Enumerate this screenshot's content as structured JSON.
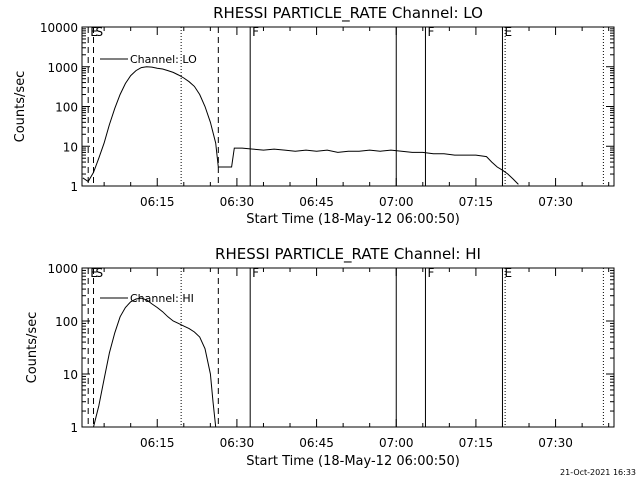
{
  "footer": {
    "timestamp": "21-Oct-2021 16:33"
  },
  "chart_data": [
    {
      "type": "line",
      "title": "RHESSI PARTICLE_RATE Channel: LO",
      "xlabel": "Start Time (18-May-12 06:00:50)",
      "ylabel": "Counts/sec",
      "yscale": "log",
      "xlim": [
        "06:00:50",
        "07:41:00"
      ],
      "ylim": [
        1,
        10000
      ],
      "yticks": [
        {
          "v": 1,
          "label": "1"
        },
        {
          "v": 10,
          "label": "10"
        },
        {
          "v": 100,
          "label": "100"
        },
        {
          "v": 1000,
          "label": "1000"
        },
        {
          "v": 10000,
          "label": "10000"
        }
      ],
      "xticks": [
        "06:15",
        "06:30",
        "06:45",
        "07:00",
        "07:15",
        "07:30"
      ],
      "grid": false,
      "legend": "top-left",
      "series": [
        {
          "name": "Channel: LO",
          "points": [
            [
              "06:01",
              1.6
            ],
            [
              "06:02",
              1.3
            ],
            [
              "06:03",
              2.2
            ],
            [
              "06:04",
              5
            ],
            [
              "06:05",
              12
            ],
            [
              "06:06",
              35
            ],
            [
              "06:07",
              90
            ],
            [
              "06:08",
              200
            ],
            [
              "06:09",
              380
            ],
            [
              "06:10",
              600
            ],
            [
              "06:11",
              800
            ],
            [
              "06:12",
              950
            ],
            [
              "06:13",
              1000
            ],
            [
              "06:14",
              980
            ],
            [
              "06:15",
              920
            ],
            [
              "06:16",
              880
            ],
            [
              "06:17",
              800
            ],
            [
              "06:18",
              720
            ],
            [
              "06:19",
              620
            ],
            [
              "06:20",
              520
            ],
            [
              "06:21",
              420
            ],
            [
              "06:22",
              320
            ],
            [
              "06:23",
              200
            ],
            [
              "06:24",
              100
            ],
            [
              "06:25",
              40
            ],
            [
              "06:26",
              12
            ],
            [
              "06:26.5",
              3
            ],
            [
              "06:28",
              3
            ],
            [
              "06:29",
              3
            ],
            [
              "06:29.5",
              9
            ],
            [
              "06:31",
              9
            ],
            [
              "06:33",
              8.5
            ],
            [
              "06:35",
              8
            ],
            [
              "06:37",
              8.5
            ],
            [
              "06:39",
              8
            ],
            [
              "06:41",
              7.5
            ],
            [
              "06:43",
              8
            ],
            [
              "06:45",
              7.5
            ],
            [
              "06:47",
              8
            ],
            [
              "06:49",
              7
            ],
            [
              "06:51",
              7.5
            ],
            [
              "06:53",
              7.5
            ],
            [
              "06:55",
              8
            ],
            [
              "06:57",
              7.5
            ],
            [
              "06:59",
              8
            ],
            [
              "07:01",
              7.5
            ],
            [
              "07:03",
              7
            ],
            [
              "07:05",
              7
            ],
            [
              "07:07",
              6.5
            ],
            [
              "07:09",
              6.5
            ],
            [
              "07:11",
              6
            ],
            [
              "07:13",
              6
            ],
            [
              "07:15",
              6
            ],
            [
              "07:17",
              5.5
            ],
            [
              "07:18",
              4
            ],
            [
              "07:19",
              3
            ],
            [
              "07:20",
              2.5
            ],
            [
              "07:21",
              2
            ],
            [
              "07:22",
              1.5
            ],
            [
              "07:23",
              1.1
            ]
          ]
        }
      ],
      "markers": [
        {
          "time": "06:02",
          "label": "E",
          "style": "dashed"
        },
        {
          "time": "06:03",
          "label": "S",
          "style": "dashed"
        },
        {
          "time": "06:19.5",
          "label": "",
          "style": "dotted"
        },
        {
          "time": "06:26.5",
          "label": "",
          "style": "dashed"
        },
        {
          "time": "06:32.5",
          "label": "F",
          "style": "solid"
        },
        {
          "time": "07:00",
          "label": "",
          "style": "solid"
        },
        {
          "time": "07:05.5",
          "label": "F",
          "style": "solid"
        },
        {
          "time": "07:20",
          "label": "E",
          "style": "solid"
        },
        {
          "time": "07:20.5",
          "label": "",
          "style": "dotted"
        },
        {
          "time": "07:39",
          "label": "",
          "style": "dotted"
        }
      ]
    },
    {
      "type": "line",
      "title": "RHESSI PARTICLE_RATE Channel: HI",
      "xlabel": "Start Time (18-May-12 06:00:50)",
      "ylabel": "Counts/sec",
      "yscale": "log",
      "xlim": [
        "06:00:50",
        "07:41:00"
      ],
      "ylim": [
        1,
        1000
      ],
      "yticks": [
        {
          "v": 1,
          "label": "1"
        },
        {
          "v": 10,
          "label": "10"
        },
        {
          "v": 100,
          "label": "100"
        },
        {
          "v": 1000,
          "label": "1000"
        }
      ],
      "xticks": [
        "06:15",
        "06:30",
        "06:45",
        "07:00",
        "07:15",
        "07:30"
      ],
      "grid": false,
      "legend": "top-left",
      "series": [
        {
          "name": "Channel: HI",
          "points": [
            [
              "06:03",
              1
            ],
            [
              "06:04",
              2.5
            ],
            [
              "06:05",
              8
            ],
            [
              "06:06",
              25
            ],
            [
              "06:07",
              60
            ],
            [
              "06:08",
              120
            ],
            [
              "06:09",
              180
            ],
            [
              "06:10",
              230
            ],
            [
              "06:11",
              260
            ],
            [
              "06:12",
              270
            ],
            [
              "06:13",
              250
            ],
            [
              "06:14",
              210
            ],
            [
              "06:15",
              180
            ],
            [
              "06:16",
              150
            ],
            [
              "06:17",
              120
            ],
            [
              "06:18",
              100
            ],
            [
              "06:19",
              90
            ],
            [
              "06:20",
              80
            ],
            [
              "06:21",
              72
            ],
            [
              "06:22",
              62
            ],
            [
              "06:23",
              50
            ],
            [
              "06:24",
              30
            ],
            [
              "06:25",
              10
            ],
            [
              "06:25.5",
              3
            ],
            [
              "06:26",
              1
            ]
          ]
        }
      ],
      "markers": [
        {
          "time": "06:02",
          "label": "E",
          "style": "dashed"
        },
        {
          "time": "06:03",
          "label": "S",
          "style": "dashed"
        },
        {
          "time": "06:19.5",
          "label": "",
          "style": "dotted"
        },
        {
          "time": "06:26.5",
          "label": "",
          "style": "dashed"
        },
        {
          "time": "06:32.5",
          "label": "F",
          "style": "solid"
        },
        {
          "time": "07:00",
          "label": "",
          "style": "solid"
        },
        {
          "time": "07:05.5",
          "label": "F",
          "style": "solid"
        },
        {
          "time": "07:20",
          "label": "E",
          "style": "solid"
        },
        {
          "time": "07:20.5",
          "label": "",
          "style": "dotted"
        },
        {
          "time": "07:39",
          "label": "",
          "style": "dotted"
        }
      ]
    }
  ]
}
